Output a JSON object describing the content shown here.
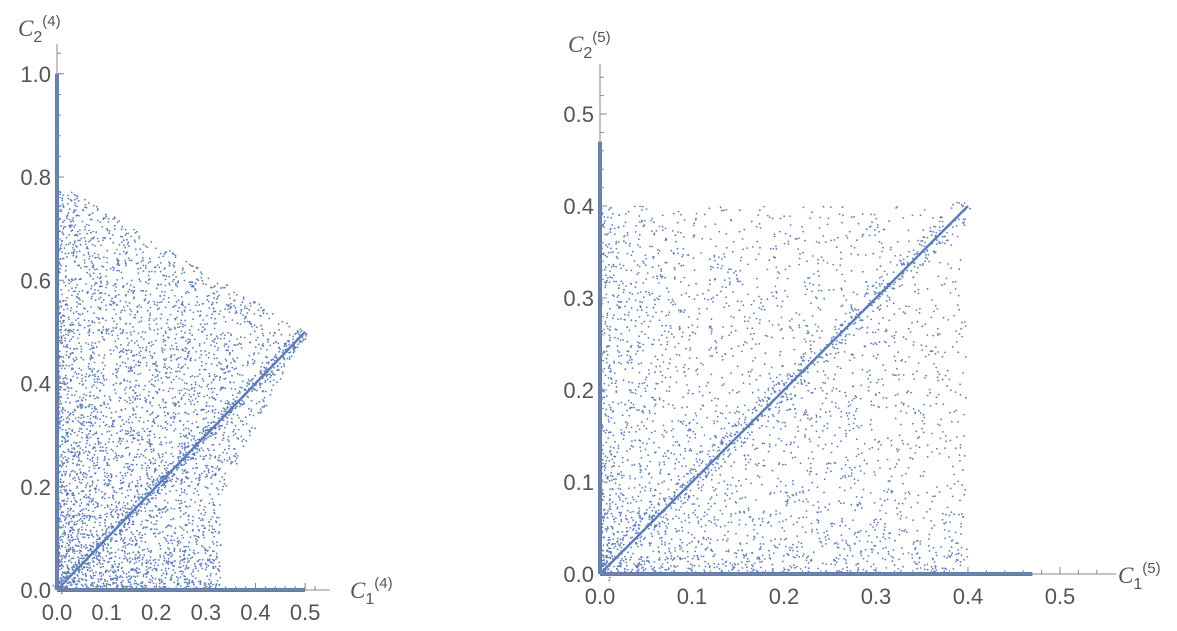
{
  "chart_data": [
    {
      "type": "scatter",
      "title": "",
      "xlabel": {
        "base": "C",
        "sub": "1",
        "sup": "(4)"
      },
      "ylabel": {
        "base": "C",
        "sub": "2",
        "sup": "(4)"
      },
      "xlim": [
        0,
        0.53
      ],
      "ylim": [
        0,
        1.05
      ],
      "xticks": [
        0.0,
        0.1,
        0.2,
        0.3,
        0.4,
        0.5
      ],
      "xtick_labels": [
        "0.0",
        "0.1",
        "0.2",
        "0.3",
        "0.4",
        "0.5"
      ],
      "yticks": [
        0.0,
        0.2,
        0.4,
        0.6,
        0.8,
        1.0
      ],
      "ytick_labels": [
        "0.0",
        "0.2",
        "0.4",
        "0.6",
        "0.8",
        "1.0"
      ],
      "grid": false,
      "color": "#5b7db8",
      "region": {
        "description": "dense points filling region bounded by (0,0),(0,0.79),(0.5,0.5),(0.3,0.2),(0.33,0)",
        "vertices": [
          [
            0,
            0
          ],
          [
            0,
            0.79
          ],
          [
            0.5,
            0.5
          ],
          [
            0.33,
            0.18
          ],
          [
            0.33,
            0
          ]
        ]
      },
      "lines": [
        {
          "from": [
            0,
            0
          ],
          "to": [
            0,
            1.0
          ]
        },
        {
          "from": [
            0,
            0
          ],
          "to": [
            0.5,
            0
          ]
        },
        {
          "from": [
            0,
            0
          ],
          "to": [
            0.5,
            0.5
          ]
        }
      ]
    },
    {
      "type": "scatter",
      "title": "",
      "xlabel": {
        "base": "C",
        "sub": "1",
        "sup": "(5)"
      },
      "ylabel": {
        "base": "C",
        "sub": "2",
        "sup": "(5)"
      },
      "xlim": [
        0,
        0.55
      ],
      "ylim": [
        0,
        0.55
      ],
      "xticks": [
        0.0,
        0.1,
        0.2,
        0.3,
        0.4,
        0.5
      ],
      "xtick_labels": [
        "0.0",
        "0.1",
        "0.2",
        "0.3",
        "0.4",
        "0.5"
      ],
      "yticks": [
        0.0,
        0.1,
        0.2,
        0.3,
        0.4,
        0.5
      ],
      "ytick_labels": [
        "0.0",
        "0.1",
        "0.2",
        "0.3",
        "0.4",
        "0.5"
      ],
      "grid": false,
      "color": "#5b7db8",
      "region": {
        "description": "points in square [0,0.4]x[0,0.4], denser near origin",
        "vertices": [
          [
            0,
            0
          ],
          [
            0,
            0.4
          ],
          [
            0.4,
            0.4
          ],
          [
            0.4,
            0
          ]
        ]
      },
      "lines": [
        {
          "from": [
            0,
            0
          ],
          "to": [
            0,
            0.47
          ]
        },
        {
          "from": [
            0,
            0
          ],
          "to": [
            0.47,
            0
          ]
        },
        {
          "from": [
            0,
            0
          ],
          "to": [
            0.4,
            0.4
          ]
        }
      ]
    }
  ]
}
